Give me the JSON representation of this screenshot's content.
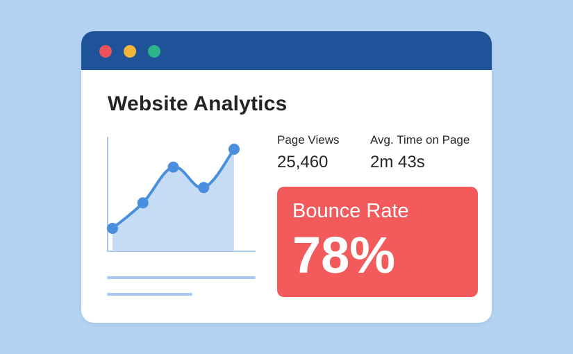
{
  "window": {
    "controls": [
      {
        "name": "close",
        "color": "#f0525a"
      },
      {
        "name": "minimize",
        "color": "#f5b53c"
      },
      {
        "name": "maximize",
        "color": "#2bb38a"
      }
    ],
    "titlebar_color": "#1f5399"
  },
  "page": {
    "title": "Website Analytics"
  },
  "metrics": [
    {
      "label": "Page Views",
      "value": "25,460"
    },
    {
      "label": "Avg. Time on Page",
      "value": "2m 43s"
    }
  ],
  "bounce_rate": {
    "label": "Bounce Rate",
    "value": "78%",
    "color": "#f25a5b"
  },
  "chart_data": {
    "type": "area",
    "points": [
      1,
      2,
      3.4,
      2.6,
      4.1
    ],
    "line_color": "#4a8fdd",
    "fill_color": "#c6dcf4"
  }
}
